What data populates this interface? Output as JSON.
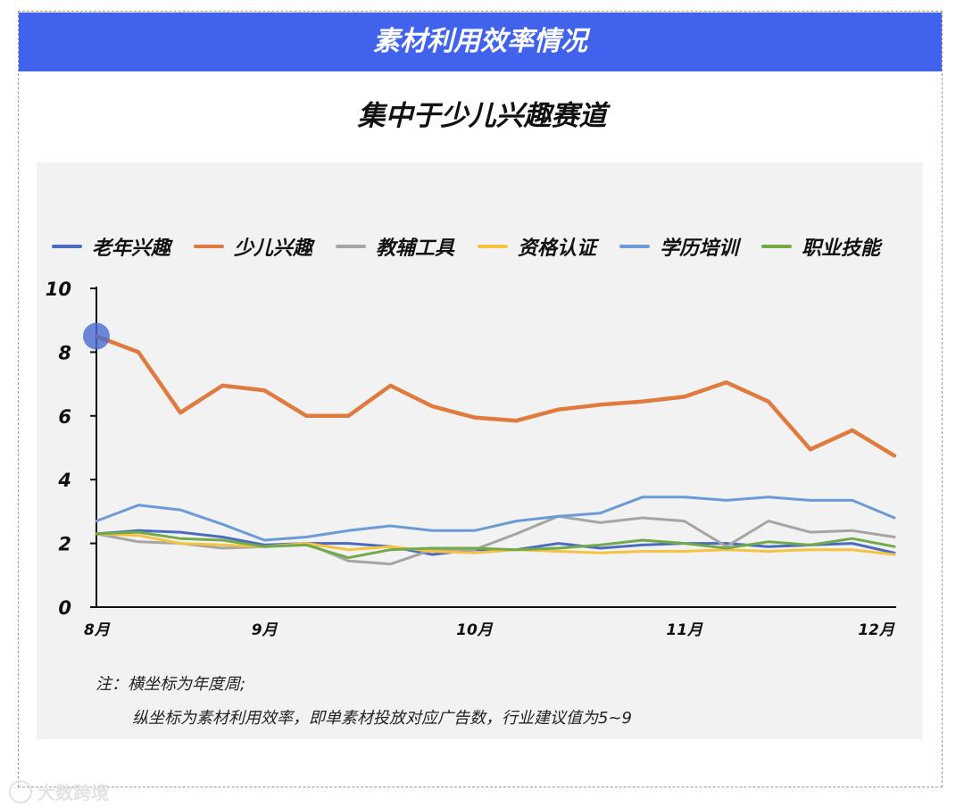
{
  "banner": {
    "title": "素材利用效率情况"
  },
  "subtitle": "集中于少儿兴趣赛道",
  "notes": {
    "line1": "注：横坐标为年度周;",
    "line2": "纵坐标为素材利用效率，即单素材投放对应广告数，行业建议值为5~9"
  },
  "watermark": "大数跨境",
  "chart_data": {
    "type": "line",
    "x": [
      0,
      1,
      2,
      3,
      4,
      5,
      6,
      7,
      8,
      9,
      10,
      11,
      12,
      13,
      14,
      15,
      16,
      17,
      18,
      19
    ],
    "x_tick_labels": [
      {
        "x": 0,
        "label": "8月"
      },
      {
        "x": 4,
        "label": "9月"
      },
      {
        "x": 9,
        "label": "10月"
      },
      {
        "x": 14,
        "label": "11月"
      },
      {
        "x": 19,
        "label": "12月"
      }
    ],
    "ylim": [
      0,
      10
    ],
    "yticks": [
      0,
      2,
      4,
      6,
      8,
      10
    ],
    "highlight": {
      "series": "少儿兴趣",
      "index": 0,
      "color": "#4a6ad0"
    },
    "series": [
      {
        "name": "老年兴趣",
        "color": "#4a6cc0",
        "values": [
          2.3,
          2.4,
          2.35,
          2.2,
          1.95,
          2.0,
          2.0,
          1.9,
          1.65,
          1.8,
          1.8,
          2.0,
          1.85,
          1.95,
          2.0,
          2.0,
          1.9,
          1.95,
          2.0,
          1.7
        ]
      },
      {
        "name": "少儿兴趣",
        "color": "#e07b3f",
        "values": [
          8.5,
          8.0,
          6.1,
          6.95,
          6.8,
          6.0,
          6.0,
          6.95,
          6.3,
          5.95,
          5.85,
          6.2,
          6.35,
          6.45,
          6.6,
          7.05,
          6.45,
          4.95,
          5.55,
          4.75
        ]
      },
      {
        "name": "教辅工具",
        "color": "#a5a5a5",
        "values": [
          2.3,
          2.05,
          2.0,
          1.85,
          1.9,
          2.0,
          1.45,
          1.35,
          1.8,
          1.8,
          2.3,
          2.85,
          2.65,
          2.8,
          2.7,
          1.9,
          2.7,
          2.35,
          2.4,
          2.2
        ]
      },
      {
        "name": "资格认证",
        "color": "#f5c342",
        "values": [
          2.3,
          2.25,
          2.0,
          1.95,
          1.9,
          2.0,
          1.8,
          1.9,
          1.75,
          1.7,
          1.8,
          1.75,
          1.7,
          1.75,
          1.75,
          1.8,
          1.75,
          1.8,
          1.8,
          1.65
        ]
      },
      {
        "name": "学历培训",
        "color": "#6b9bd6",
        "values": [
          2.7,
          3.2,
          3.05,
          2.6,
          2.1,
          2.2,
          2.4,
          2.55,
          2.4,
          2.4,
          2.7,
          2.85,
          2.95,
          3.45,
          3.45,
          3.35,
          3.45,
          3.35,
          3.35,
          2.8
        ]
      },
      {
        "name": "职业技能",
        "color": "#72aa4a",
        "values": [
          2.3,
          2.35,
          2.15,
          2.1,
          1.9,
          1.95,
          1.55,
          1.8,
          1.85,
          1.85,
          1.8,
          1.85,
          1.95,
          2.1,
          2.0,
          1.85,
          2.05,
          1.95,
          2.15,
          1.9
        ]
      }
    ]
  }
}
